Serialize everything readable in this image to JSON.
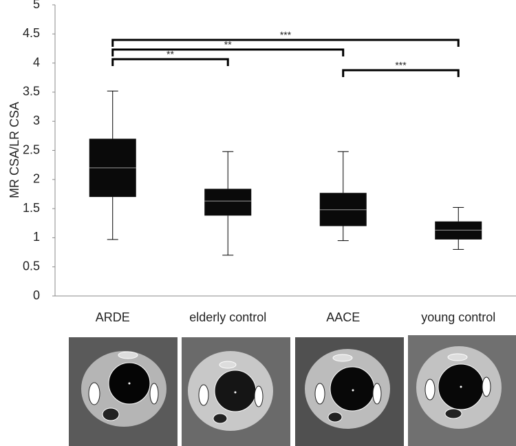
{
  "chart_data": {
    "type": "box",
    "y_label": "MR CSA/LR CSA",
    "categories": [
      "ARDE",
      "elderly control",
      "AACE",
      "young control"
    ],
    "boxes": [
      {
        "min": 0.97,
        "q1": 1.7,
        "median": 2.2,
        "q3": 2.7,
        "max": 3.52
      },
      {
        "min": 0.7,
        "q1": 1.38,
        "median": 1.63,
        "q3": 1.84,
        "max": 2.48
      },
      {
        "min": 0.95,
        "q1": 1.2,
        "median": 1.48,
        "q3": 1.77,
        "max": 2.48
      },
      {
        "min": 0.8,
        "q1": 0.97,
        "median": 1.13,
        "q3": 1.28,
        "max": 1.52
      }
    ],
    "color": "#0a0a0a",
    "median_color": "#9a9a9a",
    "ylim": [
      0,
      5
    ],
    "yticks": [
      0,
      0.5,
      1,
      1.5,
      2,
      2.5,
      3,
      3.5,
      4,
      4.5,
      5
    ],
    "annotations": [
      {
        "text": "***",
        "from": "ARDE",
        "to": "young control"
      },
      {
        "text": "**",
        "from": "ARDE",
        "to": "AACE"
      },
      {
        "text": "**",
        "from": "ARDE",
        "to": "elderly control"
      },
      {
        "text": "***",
        "from": "AACE",
        "to": "young control"
      }
    ]
  }
}
